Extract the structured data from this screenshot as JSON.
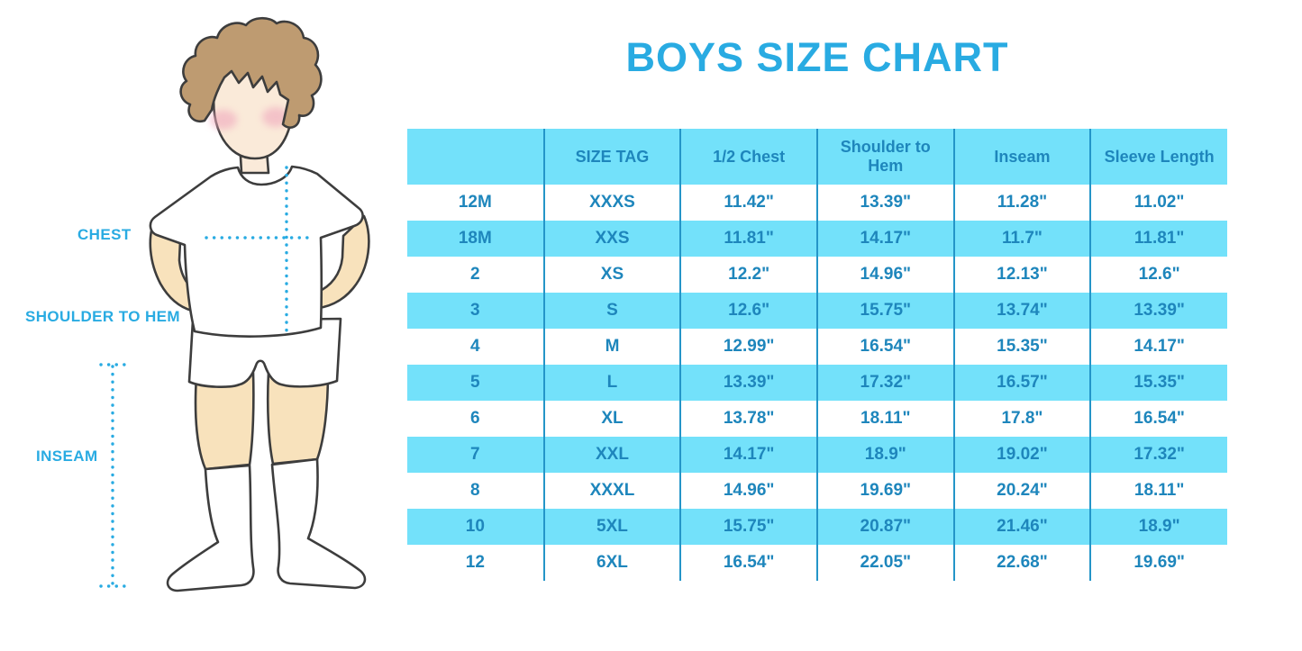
{
  "page": {
    "title": "BOYS SIZE CHART"
  },
  "colors": {
    "accent_blue": "#29ABE2",
    "table_text_blue": "#1E86BC",
    "band_cyan": "#73E1FA",
    "divider_blue": "#2495C8",
    "skin": "#F8E2BC",
    "face_skin": "#FAEAD9",
    "hair_brown": "#BE9B71",
    "blush_pink": "#F0A9BD",
    "outline_dark": "#3D3D3D"
  },
  "figure": {
    "labels": {
      "chest": "CHEST",
      "shoulder_to_hem": "SHOULDER TO HEM",
      "inseam": "INSEAM"
    }
  },
  "table": {
    "columns": [
      "",
      "SIZE TAG",
      "1/2 Chest",
      "Shoulder to Hem",
      "Inseam",
      "Sleeve Length"
    ],
    "rows": [
      [
        "12M",
        "XXXS",
        "11.42\"",
        "13.39\"",
        "11.28\"",
        "11.02\""
      ],
      [
        "18M",
        "XXS",
        "11.81\"",
        "14.17\"",
        "11.7\"",
        "11.81\""
      ],
      [
        "2",
        "XS",
        "12.2\"",
        "14.96\"",
        "12.13\"",
        "12.6\""
      ],
      [
        "3",
        "S",
        "12.6\"",
        "15.75\"",
        "13.74\"",
        "13.39\""
      ],
      [
        "4",
        "M",
        "12.99\"",
        "16.54\"",
        "15.35\"",
        "14.17\""
      ],
      [
        "5",
        "L",
        "13.39\"",
        "17.32\"",
        "16.57\"",
        "15.35\""
      ],
      [
        "6",
        "XL",
        "13.78\"",
        "18.11\"",
        "17.8\"",
        "16.54\""
      ],
      [
        "7",
        "XXL",
        "14.17\"",
        "18.9\"",
        "19.02\"",
        "17.32\""
      ],
      [
        "8",
        "XXXL",
        "14.96\"",
        "19.69\"",
        "20.24\"",
        "18.11\""
      ],
      [
        "10",
        "5XL",
        "15.75\"",
        "20.87\"",
        "21.46\"",
        "18.9\""
      ],
      [
        "12",
        "6XL",
        "16.54\"",
        "22.05\"",
        "22.68\"",
        "19.69\""
      ]
    ]
  },
  "chart_data": {
    "type": "table",
    "title": "BOYS SIZE CHART",
    "units": "inches",
    "columns": [
      "",
      "SIZE TAG",
      "1/2 Chest",
      "Shoulder to Hem",
      "Inseam",
      "Sleeve Length"
    ],
    "rows": [
      [
        "12M",
        "XXXS",
        11.42,
        13.39,
        11.28,
        11.02
      ],
      [
        "18M",
        "XXS",
        11.81,
        14.17,
        11.7,
        11.81
      ],
      [
        "2",
        "XS",
        12.2,
        14.96,
        12.13,
        12.6
      ],
      [
        "3",
        "S",
        12.6,
        15.75,
        13.74,
        13.39
      ],
      [
        "4",
        "M",
        12.99,
        16.54,
        15.35,
        14.17
      ],
      [
        "5",
        "L",
        13.39,
        17.32,
        16.57,
        15.35
      ],
      [
        "6",
        "XL",
        13.78,
        18.11,
        17.8,
        16.54
      ],
      [
        "7",
        "XXL",
        14.17,
        18.9,
        19.02,
        17.32
      ],
      [
        "8",
        "XXXL",
        14.96,
        19.69,
        20.24,
        18.11
      ],
      [
        "10",
        "5XL",
        15.75,
        20.87,
        21.46,
        18.9
      ],
      [
        "12",
        "6XL",
        16.54,
        22.05,
        22.68,
        19.69
      ]
    ]
  }
}
